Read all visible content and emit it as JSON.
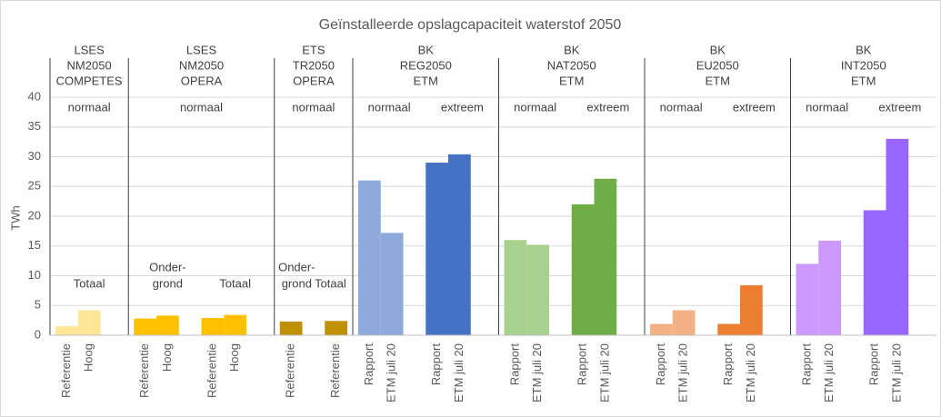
{
  "chart_data": {
    "type": "grouped-bar",
    "title": "Geïnstalleerde opslagcapaciteit waterstof 2050",
    "ylabel": "TWh",
    "ylim": [
      0,
      40
    ],
    "yticks": [
      0,
      5,
      10,
      15,
      20,
      25,
      30,
      35,
      40
    ],
    "grid": true,
    "groups": [
      {
        "header": [
          "LSES",
          "NM2050",
          "COMPETES"
        ],
        "labels": [
          "normaal"
        ],
        "notes": [
          [
            "Totaal"
          ]
        ],
        "categories": [
          "Referentie",
          "Hoog",
          null
        ],
        "values": [
          1.5,
          4.2,
          null
        ],
        "colors": [
          "#FFE699",
          "#FFE699",
          null
        ]
      },
      {
        "header": [
          "LSES",
          "NM2050",
          "OPERA"
        ],
        "labels": [
          "normaal"
        ],
        "notes": [
          [
            "Onder-",
            "grond"
          ],
          [
            "Totaal"
          ]
        ],
        "categories": [
          "Referentie",
          "Hoog",
          null,
          "Referentie",
          "Hoog",
          null
        ],
        "values": [
          2.8,
          3.3,
          null,
          2.9,
          3.4,
          null
        ],
        "colors": [
          "#FFC000",
          "#FFC000",
          null,
          "#FFC000",
          "#FFC000",
          null
        ]
      },
      {
        "header": [
          "ETS",
          "TR2050",
          "OPERA"
        ],
        "labels": [
          "normaal"
        ],
        "notes": [
          [
            "Onder-",
            "grond"
          ],
          [
            "Totaal"
          ]
        ],
        "categories": [
          "Referentie",
          null,
          "Referentie"
        ],
        "values": [
          2.3,
          null,
          2.4
        ],
        "colors": [
          "#BF9000",
          null,
          "#BF9000"
        ]
      },
      {
        "header": [
          "BK",
          "REG2050",
          "ETM"
        ],
        "labels": [
          "normaal",
          "extreem"
        ],
        "categories": [
          "Rapport",
          "ETM juli 20",
          null,
          "Rapport",
          "ETM juli 20",
          null
        ],
        "values": [
          26,
          17.2,
          null,
          29,
          30.4,
          null
        ],
        "colors": [
          "#8EA9DB",
          "#8EA9DB",
          null,
          "#4472C4",
          "#4472C4",
          null
        ]
      },
      {
        "header": [
          "BK",
          "NAT2050",
          "ETM"
        ],
        "labels": [
          "normaal",
          "extreem"
        ],
        "categories": [
          "Rapport",
          "ETM juli 20",
          null,
          "Rapport",
          "ETM juli 20",
          null
        ],
        "values": [
          16,
          15.2,
          null,
          22,
          26.3,
          null
        ],
        "colors": [
          "#A9D18E",
          "#A9D18E",
          null,
          "#70AD47",
          "#70AD47",
          null
        ]
      },
      {
        "header": [
          "BK",
          "EU2050",
          "ETM"
        ],
        "labels": [
          "normaal",
          "extreem"
        ],
        "categories": [
          "Rapport",
          "ETM juli 20",
          null,
          "Rapport",
          "ETM juli 20",
          null
        ],
        "values": [
          1.9,
          4.2,
          null,
          1.9,
          8.4,
          null
        ],
        "colors": [
          "#F4B183",
          "#F4B183",
          null,
          "#ED7D31",
          "#ED7D31",
          null
        ]
      },
      {
        "header": [
          "BK",
          "INT2050",
          "ETM"
        ],
        "labels": [
          "normaal",
          "extreem"
        ],
        "categories": [
          "Rapport",
          "ETM juli 20",
          null,
          "Rapport",
          "ETM juli 20",
          null
        ],
        "values": [
          12,
          15.9,
          null,
          21,
          33,
          null
        ],
        "colors": [
          "#CC99FF",
          "#CC99FF",
          null,
          "#9966FF",
          "#9966FF",
          null
        ]
      }
    ]
  }
}
